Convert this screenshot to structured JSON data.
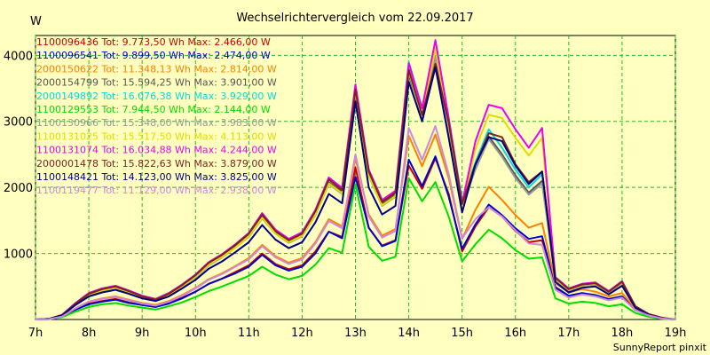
{
  "chart_data": {
    "type": "line",
    "title": "Wechselrichtervergleich vom 22.09.2017",
    "ylabel": "W",
    "xlabel": "",
    "credit": "SunnyReport pinxit",
    "xlim": [
      7,
      19
    ],
    "ylim": [
      0,
      4300
    ],
    "grid": true,
    "legend_position": "top-left",
    "x_ticks": [
      {
        "value": 7,
        "label": "7h"
      },
      {
        "value": 8,
        "label": "8h"
      },
      {
        "value": 9,
        "label": "9h"
      },
      {
        "value": 10,
        "label": "10h"
      },
      {
        "value": 11,
        "label": "11h"
      },
      {
        "value": 12,
        "label": "12h"
      },
      {
        "value": 13,
        "label": "13h"
      },
      {
        "value": 14,
        "label": "14h"
      },
      {
        "value": 15,
        "label": "15h"
      },
      {
        "value": 16,
        "label": "16h"
      },
      {
        "value": 17,
        "label": "17h"
      },
      {
        "value": 18,
        "label": "18h"
      },
      {
        "value": 19,
        "label": "19h"
      }
    ],
    "y_ticks": [
      {
        "value": 1000,
        "label": "1000"
      },
      {
        "value": 2000,
        "label": "2000"
      },
      {
        "value": 3000,
        "label": "3000"
      },
      {
        "value": 4000,
        "label": "4000"
      }
    ],
    "x": [
      7.0,
      7.25,
      7.5,
      7.75,
      8.0,
      8.25,
      8.5,
      8.75,
      9.0,
      9.25,
      9.5,
      9.75,
      10.0,
      10.25,
      10.5,
      10.75,
      11.0,
      11.25,
      11.5,
      11.75,
      12.0,
      12.25,
      12.5,
      12.75,
      13.0,
      13.25,
      13.5,
      13.75,
      14.0,
      14.25,
      14.5,
      14.75,
      15.0,
      15.25,
      15.5,
      15.75,
      16.0,
      16.25,
      16.5,
      16.75,
      17.0,
      17.25,
      17.5,
      17.75,
      18.0,
      18.25,
      18.5,
      18.75,
      19.0
    ],
    "series": [
      {
        "name": "1100096436",
        "label": "1100096436 Tot: 9.773,50 Wh Max: 2.466,00 W",
        "color": "#cc0000",
        "values": [
          0,
          5,
          40,
          150,
          240,
          280,
          310,
          260,
          220,
          190,
          250,
          330,
          420,
          540,
          620,
          720,
          820,
          1000,
          840,
          760,
          820,
          1030,
          1330,
          1250,
          2300,
          1390,
          1120,
          1200,
          2330,
          1980,
          2440,
          1900,
          1030,
          1410,
          1700,
          1560,
          1340,
          1170,
          1200,
          480,
          360,
          400,
          360,
          300,
          350,
          150,
          60,
          15,
          0
        ]
      },
      {
        "name": "1100096541",
        "label": "1100096541 Tot: 9.899,50 Wh Max: 2.474,00 W",
        "color": "#0000cc",
        "values": [
          0,
          5,
          40,
          150,
          230,
          270,
          300,
          250,
          220,
          190,
          240,
          320,
          420,
          540,
          620,
          700,
          800,
          980,
          820,
          740,
          800,
          1000,
          1330,
          1230,
          2160,
          1390,
          1110,
          1190,
          2420,
          2020,
          2470,
          1860,
          1070,
          1440,
          1740,
          1580,
          1380,
          1220,
          1260,
          490,
          360,
          400,
          370,
          310,
          350,
          150,
          60,
          15,
          0
        ]
      },
      {
        "name": "2000150622",
        "label": "2000150622 Tot: 11.348,13 Wh Max: 2.814,00 W",
        "color": "#ff8000",
        "values": [
          0,
          5,
          45,
          170,
          270,
          320,
          350,
          300,
          250,
          220,
          280,
          370,
          480,
          610,
          700,
          810,
          930,
          1130,
          960,
          860,
          930,
          1170,
          1520,
          1410,
          2440,
          1590,
          1270,
          1370,
          2780,
          2320,
          2800,
          2140,
          1220,
          1660,
          2010,
          1810,
          1580,
          1390,
          1460,
          550,
          410,
          460,
          420,
          350,
          400,
          170,
          70,
          20,
          0
        ]
      },
      {
        "name": "2000154799",
        "label": "2000154799 Tot: 15.594,25 Wh Max: 3.901,00 W",
        "color": "#555555",
        "values": [
          0,
          10,
          65,
          240,
          380,
          450,
          490,
          420,
          350,
          300,
          380,
          510,
          660,
          840,
          960,
          1110,
          1280,
          1560,
          1320,
          1180,
          1280,
          1610,
          2080,
          1930,
          3400,
          2200,
          1750,
          1890,
          3700,
          3090,
          3860,
          2960,
          1720,
          2300,
          2770,
          2500,
          2180,
          1920,
          2100,
          620,
          450,
          520,
          540,
          420,
          560,
          190,
          80,
          25,
          0
        ]
      },
      {
        "name": "2000149892",
        "label": "2000149892 Tot: 16.076,38 Wh Max: 3.929,00 W",
        "color": "#00dddd",
        "values": [
          0,
          10,
          70,
          250,
          400,
          470,
          510,
          440,
          360,
          310,
          400,
          530,
          680,
          870,
          990,
          1140,
          1310,
          1610,
          1360,
          1220,
          1320,
          1660,
          2150,
          1990,
          3500,
          2270,
          1810,
          1950,
          3900,
          3200,
          3930,
          3050,
          1800,
          2380,
          2880,
          2600,
          2270,
          2000,
          2200,
          640,
          470,
          540,
          560,
          430,
          580,
          200,
          80,
          25,
          0
        ]
      },
      {
        "name": "1100129553",
        "label": "1100129553 Tot: 7.944,50 Wh Max: 2.144,00 W",
        "color": "#00dd00",
        "values": [
          0,
          5,
          35,
          120,
          190,
          230,
          250,
          210,
          180,
          150,
          200,
          260,
          340,
          430,
          500,
          580,
          660,
          800,
          680,
          610,
          660,
          830,
          1080,
          1010,
          2050,
          1100,
          890,
          950,
          2140,
          1790,
          2080,
          1560,
          880,
          1140,
          1360,
          1230,
          1050,
          920,
          940,
          320,
          240,
          270,
          250,
          200,
          230,
          100,
          40,
          10,
          0
        ]
      },
      {
        "name": "1100130966",
        "label": "1100130966 Tot: 15.348,00 Wh Max: 3.983,00 W",
        "color": "#999999",
        "values": [
          0,
          10,
          65,
          230,
          370,
          440,
          480,
          410,
          340,
          290,
          370,
          500,
          640,
          820,
          940,
          1090,
          1250,
          1530,
          1300,
          1160,
          1260,
          1580,
          2050,
          1900,
          3450,
          2170,
          1720,
          1860,
          3750,
          3050,
          3980,
          2900,
          1700,
          2270,
          2730,
          2460,
          2140,
          1890,
          2060,
          610,
          440,
          510,
          530,
          410,
          550,
          190,
          80,
          25,
          0
        ]
      },
      {
        "name": "1100131025",
        "label": "1100131025 Tot: 15.517,50 Wh Max: 4.113,00 W",
        "color": "#dddd00",
        "values": [
          0,
          10,
          65,
          230,
          380,
          440,
          480,
          410,
          340,
          290,
          380,
          500,
          650,
          830,
          950,
          1090,
          1260,
          1540,
          1300,
          1170,
          1270,
          1590,
          2060,
          1910,
          3460,
          2180,
          1730,
          1870,
          3760,
          3080,
          4100,
          2950,
          1690,
          2580,
          3100,
          3050,
          2750,
          2480,
          2750,
          620,
          450,
          520,
          540,
          420,
          560,
          190,
          80,
          25,
          0
        ]
      },
      {
        "name": "1100131074",
        "label": "1100131074 Tot: 16.034,88 Wh Max: 4.244,00 W",
        "color": "#ee00ee",
        "values": [
          0,
          10,
          70,
          250,
          400,
          470,
          510,
          440,
          360,
          310,
          400,
          530,
          680,
          870,
          990,
          1140,
          1310,
          1610,
          1360,
          1220,
          1320,
          1660,
          2150,
          1990,
          3560,
          2270,
          1810,
          1950,
          3880,
          3200,
          4230,
          3050,
          1760,
          2700,
          3250,
          3200,
          2880,
          2600,
          2900,
          640,
          470,
          540,
          560,
          430,
          580,
          200,
          80,
          25,
          0
        ]
      },
      {
        "name": "2000001478",
        "label": "2000001478 Tot: 15.822,63 Wh Max: 3.879,00 W",
        "color": "#802020",
        "values": [
          0,
          10,
          70,
          240,
          390,
          460,
          500,
          430,
          350,
          300,
          390,
          520,
          670,
          860,
          980,
          1130,
          1300,
          1590,
          1340,
          1200,
          1300,
          1640,
          2120,
          1960,
          3480,
          2240,
          1780,
          1920,
          3780,
          3100,
          3870,
          2980,
          1750,
          2350,
          2820,
          2760,
          2350,
          2080,
          2240,
          630,
          460,
          530,
          550,
          420,
          570,
          200,
          80,
          25,
          0
        ]
      },
      {
        "name": "1100148421",
        "label": "1100148421 Tot: 14.123,00 Wh Max: 3.825,00 W",
        "color": "#000080",
        "values": [
          0,
          10,
          60,
          220,
          350,
          410,
          450,
          390,
          320,
          280,
          350,
          470,
          600,
          770,
          880,
          1020,
          1170,
          1430,
          1210,
          1080,
          1170,
          1470,
          1900,
          1760,
          3300,
          2000,
          1590,
          1720,
          3600,
          3000,
          3820,
          2750,
          1620,
          2350,
          2760,
          2700,
          2330,
          2050,
          2240,
          570,
          410,
          480,
          500,
          380,
          510,
          180,
          70,
          20,
          0
        ]
      },
      {
        "name": "1100119477",
        "label": "1100119477 Tot: 11.129,00 Wh Max: 2.938,00 W",
        "color": "#cc88dd",
        "values": [
          0,
          5,
          45,
          170,
          270,
          310,
          340,
          290,
          240,
          210,
          270,
          360,
          470,
          600,
          690,
          800,
          910,
          1110,
          940,
          840,
          910,
          1150,
          1490,
          1380,
          2500,
          1560,
          1240,
          1340,
          2900,
          2420,
          2930,
          2200,
          1230,
          1520,
          1700,
          1560,
          1350,
          1150,
          1130,
          450,
          330,
          380,
          350,
          290,
          330,
          140,
          60,
          15,
          0
        ]
      }
    ]
  }
}
